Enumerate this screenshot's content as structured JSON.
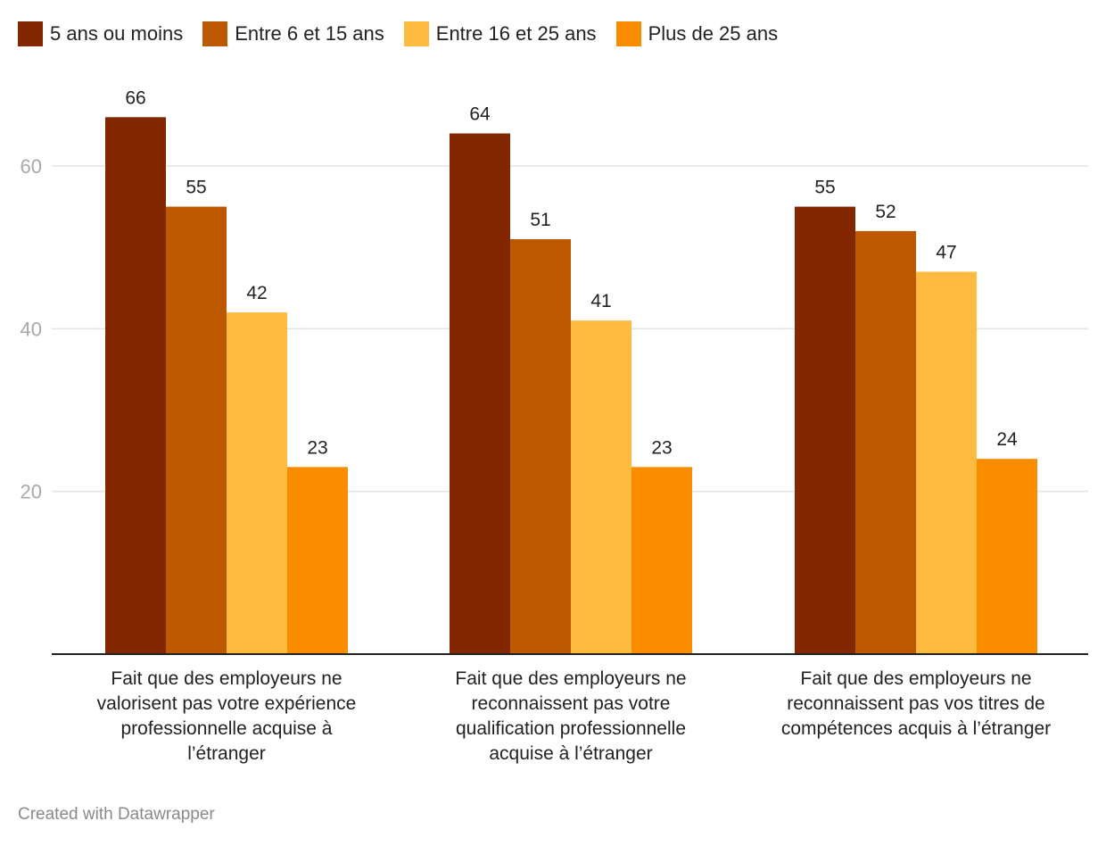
{
  "chart_data": {
    "type": "bar",
    "title": "",
    "xlabel": "",
    "ylabel": "",
    "ylim": [
      0,
      66
    ],
    "yticks": [
      20,
      40,
      60
    ],
    "grid": true,
    "legend_position": "top-left",
    "categories": [
      [
        "Fait que des employeurs ne",
        "valorisent pas votre expérience",
        "professionnelle acquise à",
        "l’étranger"
      ],
      [
        "Fait que des employeurs ne",
        "reconnaissent pas votre",
        "qualification professionnelle",
        "acquise à l’étranger"
      ],
      [
        "Fait que des employeurs ne",
        "reconnaissent pas vos titres de",
        "compétences acquis à l’étranger"
      ]
    ],
    "series": [
      {
        "name": "5 ans ou moins",
        "color": "#822700",
        "values": [
          66,
          64,
          55
        ]
      },
      {
        "name": "Entre 6 et 15 ans",
        "color": "#bb5800",
        "values": [
          55,
          51,
          52
        ]
      },
      {
        "name": "Entre 16 et 25 ans",
        "color": "#ffba40",
        "values": [
          42,
          41,
          47
        ]
      },
      {
        "name": "Plus de 25 ans",
        "color": "#fa8c00",
        "values": [
          23,
          23,
          24
        ]
      }
    ]
  },
  "footer": {
    "credit": "Created with Datawrapper"
  }
}
